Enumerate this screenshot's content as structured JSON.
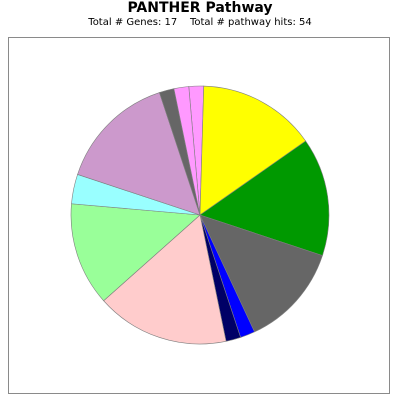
{
  "chart_data": {
    "type": "pie",
    "title": "PANTHER Pathway",
    "subtitle_parts": [
      "Total # Genes: 17",
      "Total # pathway hits: 54"
    ],
    "slices": [
      {
        "value": 1,
        "color": "#ff99ff"
      },
      {
        "value": 8,
        "color": "#ffff00"
      },
      {
        "value": 8,
        "color": "#009900"
      },
      {
        "value": 7,
        "color": "#666666"
      },
      {
        "value": 1,
        "color": "#0000ff"
      },
      {
        "value": 1,
        "color": "#000066"
      },
      {
        "value": 9,
        "color": "#ffcccc"
      },
      {
        "value": 7,
        "color": "#99ff99"
      },
      {
        "value": 2,
        "color": "#99ffff"
      },
      {
        "value": 8,
        "color": "#cc99cc"
      },
      {
        "value": 1,
        "color": "#666666"
      },
      {
        "value": 1,
        "color": "#ff99ff"
      }
    ]
  }
}
